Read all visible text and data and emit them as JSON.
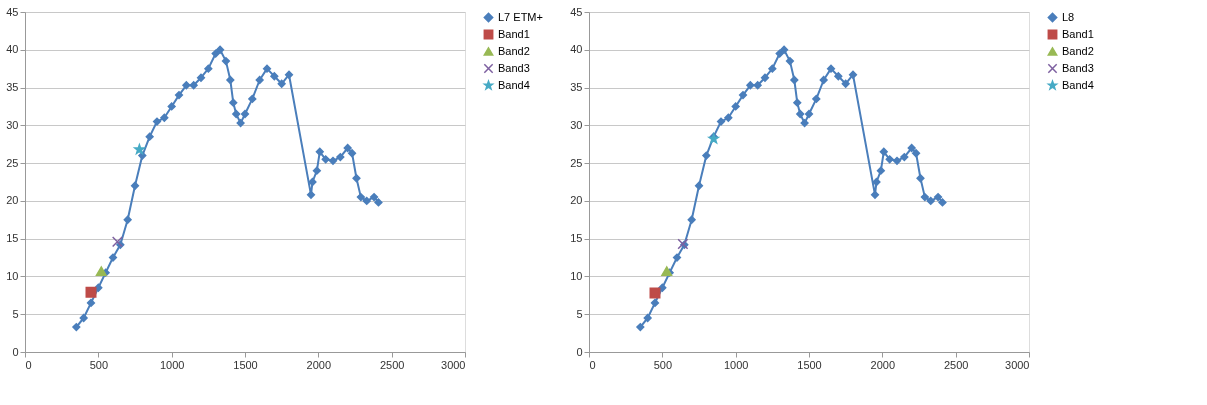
{
  "chart_data": [
    {
      "type": "line",
      "xlim": [
        0,
        3000
      ],
      "xticks": [
        0,
        500,
        1000,
        1500,
        2000,
        2500,
        3000
      ],
      "ylim": [
        0,
        45
      ],
      "yticks": [
        0,
        5,
        10,
        15,
        20,
        25,
        30,
        35,
        40,
        45
      ],
      "grid": "y",
      "legend": "right",
      "series": [
        {
          "name": "L7 ETM+",
          "color": "#4a7ebb",
          "type": "line",
          "marker": "diamond",
          "x": [
            350,
            400,
            450,
            500,
            550,
            600,
            650,
            700,
            750,
            800,
            850,
            900,
            950,
            1000,
            1050,
            1100,
            1150,
            1200,
            1250,
            1300,
            1330,
            1370,
            1400,
            1420,
            1440,
            1470,
            1500,
            1550,
            1600,
            1650,
            1700,
            1750,
            1800,
            1950,
            1960,
            1990,
            2010,
            2050,
            2100,
            2150,
            2200,
            2230,
            2260,
            2290,
            2330,
            2380,
            2410
          ],
          "values": [
            3.3,
            4.5,
            6.5,
            8.5,
            10.5,
            12.5,
            14.2,
            17.5,
            22,
            26,
            28.5,
            30.5,
            31,
            32.5,
            34,
            35.3,
            35.3,
            36.3,
            37.5,
            39.5,
            40,
            38.5,
            36,
            33,
            31.5,
            30.3,
            31.5,
            33.5,
            36,
            37.5,
            36.5,
            35.5,
            36.7,
            20.8,
            22.5,
            24,
            26.5,
            25.5,
            25.3,
            25.8,
            27,
            26.3,
            23,
            20.5,
            20,
            20.5,
            19.8
          ]
        },
        {
          "name": "Band1",
          "color": "#be4b48",
          "type": "scatter",
          "marker": "square",
          "x": [
            450
          ],
          "values": [
            7.9
          ]
        },
        {
          "name": "Band2",
          "color": "#98b954",
          "type": "scatter",
          "marker": "triangle",
          "x": [
            520
          ],
          "values": [
            10.7
          ]
        },
        {
          "name": "Band3",
          "color": "#7d60a0",
          "type": "scatter",
          "marker": "cross",
          "x": [
            630
          ],
          "values": [
            14.6
          ]
        },
        {
          "name": "Band4",
          "color": "#46aac5",
          "type": "scatter",
          "marker": "star",
          "x": [
            780
          ],
          "values": [
            26.8
          ]
        }
      ]
    },
    {
      "type": "line",
      "xlim": [
        0,
        3000
      ],
      "xticks": [
        0,
        500,
        1000,
        1500,
        2000,
        2500,
        3000
      ],
      "ylim": [
        0,
        45
      ],
      "yticks": [
        0,
        5,
        10,
        15,
        20,
        25,
        30,
        35,
        40,
        45
      ],
      "grid": "y",
      "legend": "right",
      "series": [
        {
          "name": "L8",
          "color": "#4a7ebb",
          "type": "line",
          "marker": "diamond",
          "x": [
            350,
            400,
            450,
            500,
            550,
            600,
            650,
            700,
            750,
            800,
            850,
            900,
            950,
            1000,
            1050,
            1100,
            1150,
            1200,
            1250,
            1300,
            1330,
            1370,
            1400,
            1420,
            1440,
            1470,
            1500,
            1550,
            1600,
            1650,
            1700,
            1750,
            1800,
            1950,
            1960,
            1990,
            2010,
            2050,
            2100,
            2150,
            2200,
            2230,
            2260,
            2290,
            2330,
            2380,
            2410
          ],
          "values": [
            3.3,
            4.5,
            6.5,
            8.5,
            10.5,
            12.5,
            14.2,
            17.5,
            22,
            26,
            28.5,
            30.5,
            31,
            32.5,
            34,
            35.3,
            35.3,
            36.3,
            37.5,
            39.5,
            40,
            38.5,
            36,
            33,
            31.5,
            30.3,
            31.5,
            33.5,
            36,
            37.5,
            36.5,
            35.5,
            36.7,
            20.8,
            22.5,
            24,
            26.5,
            25.5,
            25.3,
            25.8,
            27,
            26.3,
            23,
            20.5,
            20,
            20.5,
            19.8
          ]
        },
        {
          "name": "Band1",
          "color": "#be4b48",
          "type": "scatter",
          "marker": "square",
          "x": [
            450
          ],
          "values": [
            7.8
          ]
        },
        {
          "name": "Band2",
          "color": "#98b954",
          "type": "scatter",
          "marker": "triangle",
          "x": [
            530
          ],
          "values": [
            10.7
          ]
        },
        {
          "name": "Band3",
          "color": "#7d60a0",
          "type": "scatter",
          "marker": "cross",
          "x": [
            640
          ],
          "values": [
            14.3
          ]
        },
        {
          "name": "Band4",
          "color": "#46aac5",
          "type": "scatter",
          "marker": "star",
          "x": [
            850
          ],
          "values": [
            28.2
          ]
        }
      ]
    }
  ]
}
